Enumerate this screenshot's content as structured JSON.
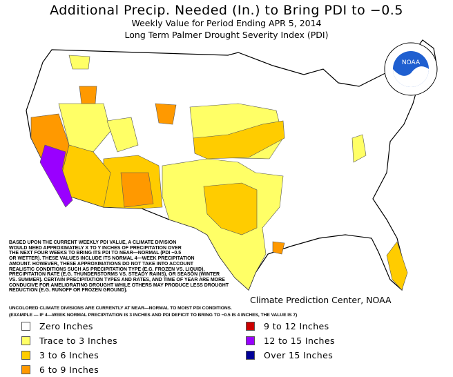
{
  "title": "Additional Precip. Needed (In.) to Bring PDI to −0.5",
  "subtitle": "Weekly Value for Period Ending APR  5, 2014",
  "subtitle2": "Long Term Palmer Drought Severity Index (PDI)",
  "logo": {
    "text": "NOAA",
    "ring_text": "NATIONAL OCEANIC AND ATMOSPHERIC ADMINISTRATION · U.S. DEPARTMENT OF COMMERCE"
  },
  "notes": "BASED UPON THE CURRENT WEEKLY PDI VALUE, A CLIMATE DIVISION\nWOULD NEED APPROXIMATELY X TO Y INCHES OF PRECIPITATION OVER\nTHE NEXT FOUR WEEKS TO BRING ITS PDI TO NEAR—NORMAL (PDI −0.5\nOR WETTER). THESE VALUES INCLUDE ITS NORMAL 4—WEEK PRECIPITATION\nAMOUNT. HOWEVER, THESE APPROXIMATIONS DO NOT TAKE INTO ACCOUNT\nREALISTIC CONDITIONS SUCH AS PRECIPITATION TYPE (E.G. FROZEN VS. LIQUID),\nPRECIPITATION RATE (E.G. THUNDERSTORMS VS. STEADY RAINS), OR SEASON (WINTER\nVS. SUMMER). CERTAIN PRECIPITATION TYPES AND RATES, AND TIME OF YEAR ARE MORE\nCONDUCIVE FOR AMELIORATING DROUGHT WHILE OTHERS MAY PRODUCE LESS DROUGHT\nREDUCTION (E.G. RUNOFF OR FROZEN GROUND).",
  "uncolored_note": "UNCOLORED CLIMATE DIVISIONS ARE CURRENTLY AT NEAR—NORMAL TO MOIST PDI CONDITIONS.",
  "example_note": "(EXAMPLE — IF 4—WEEK NORMAL PRECIPITATION IS 3 INCHES AND PDI DEFICIT TO BRING TO −0.5 IS 4 INCHES, THE VALUE IS 7)",
  "credit": "Climate Prediction Center, NOAA",
  "legend": [
    {
      "label": "Zero Inches",
      "color": "#ffffff"
    },
    {
      "label": "Trace to 3 Inches",
      "color": "#ffff66"
    },
    {
      "label": "3 to 6 Inches",
      "color": "#ffcc00"
    },
    {
      "label": "6 to 9 Inches",
      "color": "#ff9900"
    },
    {
      "label": "9 to 12 Inches",
      "color": "#cc0000"
    },
    {
      "label": "12 to 15 Inches",
      "color": "#9900ff"
    },
    {
      "label": "Over 15 Inches",
      "color": "#000099"
    }
  ]
}
